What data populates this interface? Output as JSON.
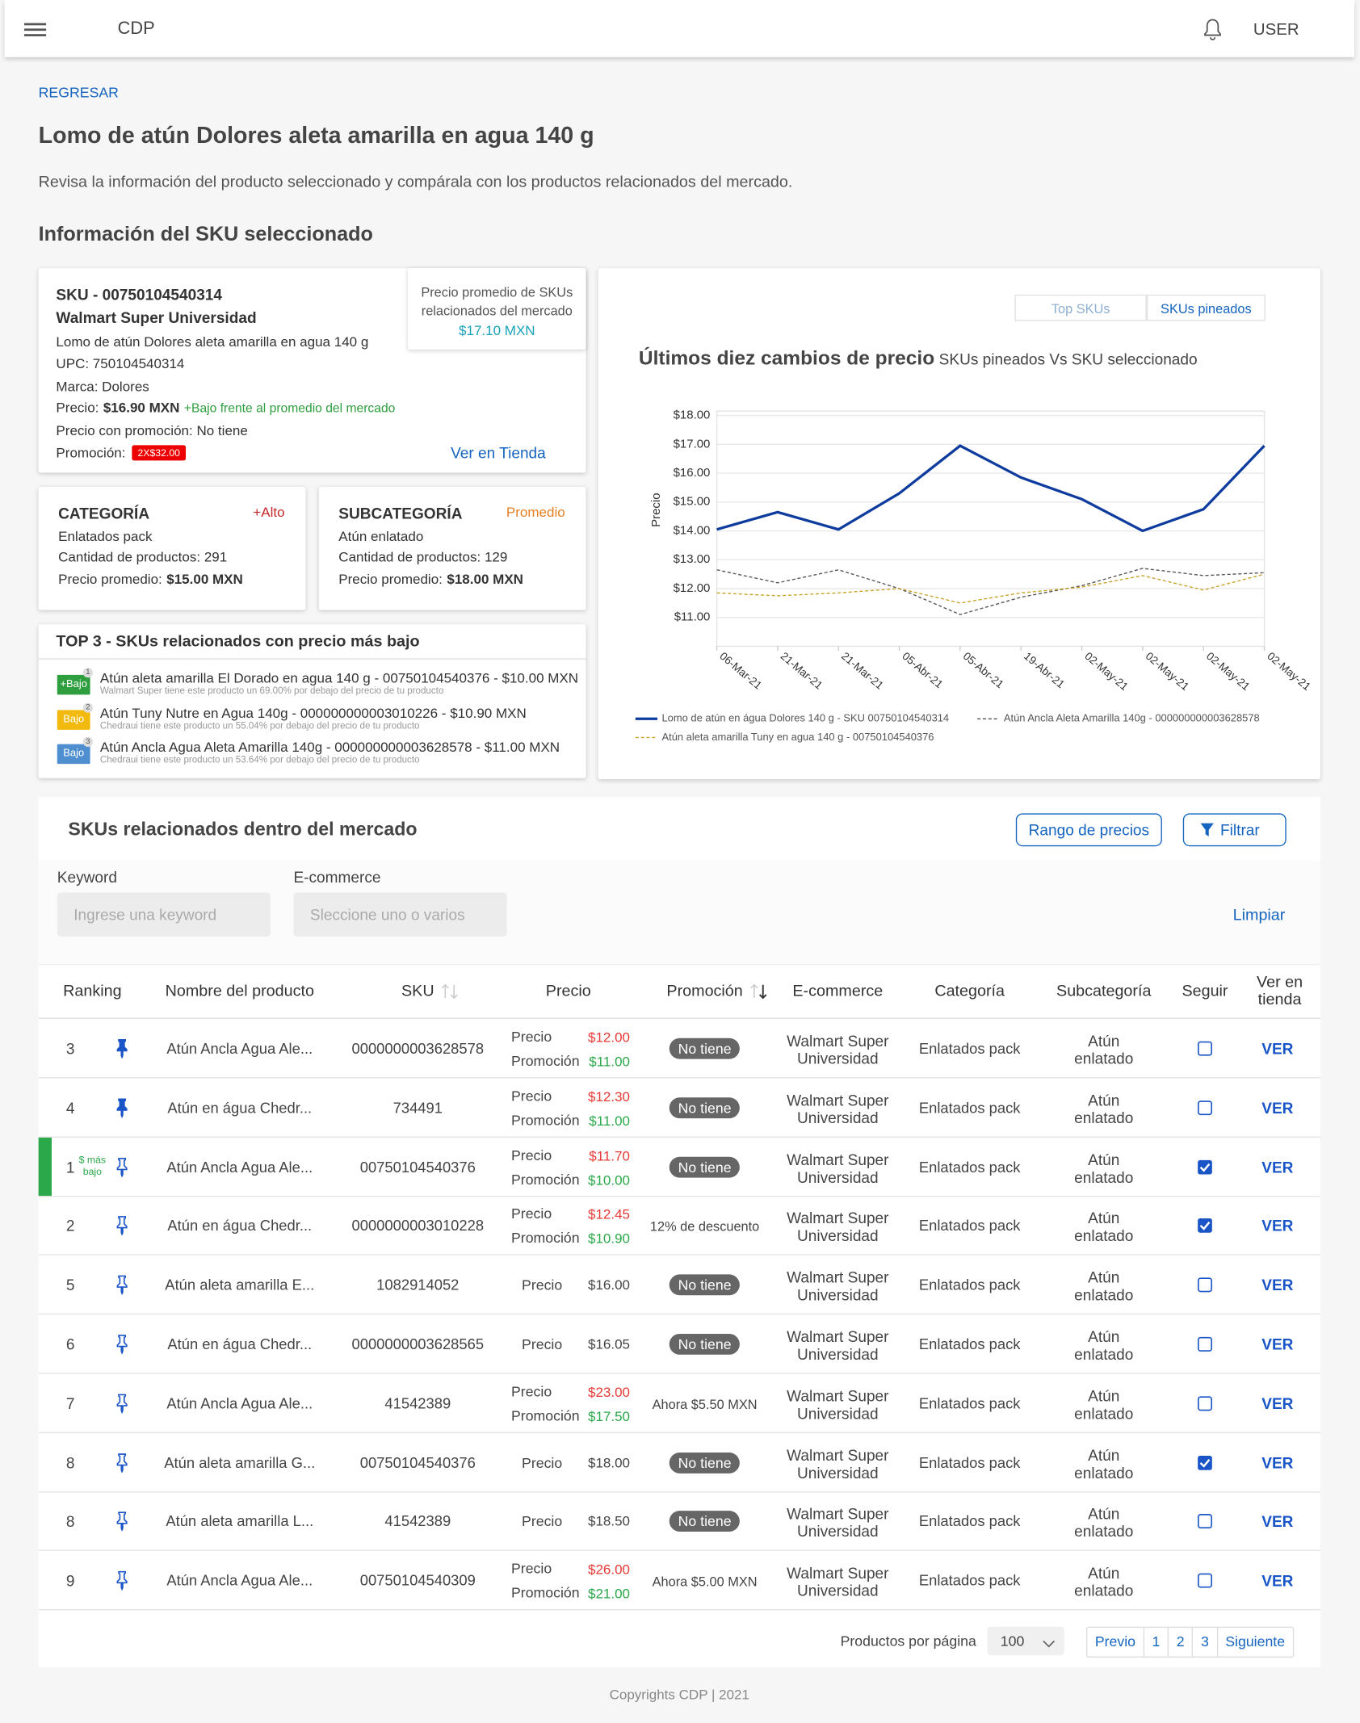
{
  "header": {
    "brand": "CDP",
    "user": "USER"
  },
  "page": {
    "back": "REGRESAR",
    "title": "Lomo de atún Dolores aleta amarilla en agua 140 g",
    "description": "Revisa la información del producto seleccionado y compárala con los productos relacionados del mercado.",
    "section_title": "Información del SKU seleccionado"
  },
  "sku_card": {
    "sku": "SKU - 00750104540314",
    "retailer": "Walmart Super Universidad",
    "name": "Lomo de atún Dolores aleta amarilla en agua 140 g",
    "upc": "UPC: 750104540314",
    "brand": "Marca: Dolores",
    "price_label": "Precio:",
    "price": "$16.90 MXN",
    "price_note": "+Bajo frente al promedio del mercado",
    "promo_price": "Precio con promoción: No tiene",
    "promo_label": "Promoción:",
    "promo_badge": "2X$32.00",
    "store_link": "Ver en Tienda",
    "avg_label": "Precio promedio de SKUs relacionados del mercado",
    "avg_value": "$17.10 MXN"
  },
  "category_card": {
    "title": "CATEGORÍA",
    "tag": "+Alto",
    "tag_color": "#c62828",
    "name": "Enlatados pack",
    "count": "Cantidad de productos: 291",
    "avg_label": "Precio promedio:",
    "avg": "$15.00 MXN"
  },
  "subcategory_card": {
    "title": "SUBCATEGORÍA",
    "tag": "Promedio",
    "tag_color": "#e67e22",
    "name": "Atún enlatado",
    "count": "Cantidad de productos: 129",
    "avg_label": "Precio promedio:",
    "avg": "$18.00 MXN"
  },
  "top3": {
    "title": "TOP 3 - SKUs relacionados con precio más bajo",
    "items": [
      {
        "badge": "+Bajo",
        "color": "#2e9e3e",
        "rank": "1",
        "title": "Atún aleta amarilla El Dorado en agua 140 g - 00750104540376 - $10.00 MXN",
        "note": "Walmart Super tiene este producto un 69.00% por debajo del precio de tu producto"
      },
      {
        "badge": "Bajo",
        "color": "#f2b90f",
        "rank": "2",
        "title": "Atún Tuny Nutre en Agua 140g - 000000000003010226 - $10.90 MXN",
        "note": "Chedraui tiene este producto un 55.04% por debajo del precio de tu producto"
      },
      {
        "badge": "Bajo",
        "color": "#4f8fd0",
        "rank": "3",
        "title": "Atún Ancla Agua Aleta Amarilla 140g - 000000000003628578 - $11.00 MXN",
        "note": "Chedraui tiene este producto un 53.64% por debajo del precio de tu producto"
      }
    ]
  },
  "chart_tabs": {
    "items": [
      "Top SKUs",
      "SKUs pineados"
    ],
    "active": 1
  },
  "chart_data": {
    "type": "line",
    "title": "Últimos diez cambios de precio",
    "subtitle": "SKUs pineados Vs SKU seleccionado",
    "y_label": "Precio",
    "categories": [
      "06-Mar-21",
      "21-Mar-21",
      "21-Mar-21",
      "05-Abr-21",
      "05-Abr-21",
      "19-Abr-21",
      "02-May-21",
      "02-May-21",
      "02-May-21",
      "02-May-21"
    ],
    "series": [
      {
        "name": "Lomo de atún en água Dolores 140 g - SKU 00750104540314",
        "color": "#0d3b9e",
        "dashed": false,
        "values": [
          14.05,
          14.65,
          14.05,
          15.3,
          16.95,
          15.85,
          15.1,
          14.0,
          14.75,
          16.95
        ]
      },
      {
        "name": "Atún Ancla Aleta Amarilla 140g - 000000000003628578",
        "color": "#555555",
        "dashed": true,
        "values": [
          12.65,
          12.2,
          12.65,
          12.0,
          11.1,
          11.7,
          12.1,
          12.7,
          12.45,
          12.55
        ]
      },
      {
        "name": "Atún aleta amarilla Tuny en agua 140 g - 00750104540376",
        "color": "#c9a227",
        "dashed": true,
        "values": [
          11.85,
          11.75,
          11.85,
          12.0,
          11.5,
          11.85,
          12.05,
          12.45,
          11.95,
          12.5
        ]
      }
    ],
    "ylim": [
      10,
      18
    ],
    "yticks": [
      {
        "value": 11,
        "label": "$11.00"
      },
      {
        "value": 12,
        "label": "$12.00"
      },
      {
        "value": 13,
        "label": "$13.00"
      },
      {
        "value": 14,
        "label": "$14.00"
      },
      {
        "value": 15,
        "label": "$15.00"
      },
      {
        "value": 16,
        "label": "$16.00"
      },
      {
        "value": 17,
        "label": "$17.00"
      },
      {
        "value": 18,
        "label": "$18.00"
      }
    ],
    "grid": true
  },
  "table_section": {
    "title": "SKUs relacionados dentro del mercado",
    "range_button": "Rango de precios",
    "filter_button": "Filtrar",
    "keyword_label": "Keyword",
    "keyword_placeholder": "Ingrese una keyword",
    "ecommerce_label": "E-commerce",
    "ecommerce_placeholder": "Sleccione uno o varios",
    "clear": "Limpiar"
  },
  "table": {
    "columns": [
      "Ranking",
      "Nombre del producto",
      "SKU",
      "Precio",
      "Promoción",
      "E-commerce",
      "Categoría",
      "Subcategoría",
      "Seguir",
      "Ver en tienda"
    ],
    "price_label": "Precio",
    "promo_label": "Promoción",
    "action": "VER",
    "rows": [
      {
        "ranking": 3,
        "pinned": true,
        "name": "Atún Ancla Agua Ale...",
        "sku": "0000000003628578",
        "price": "$12.00",
        "promo_price": "$11.00",
        "promotion": "No tiene",
        "promotion_style": "pill",
        "ecommerce": "Walmart Super Universidad",
        "category": "Enlatados pack",
        "subcategory": "Atún enlatado",
        "follow": false
      },
      {
        "ranking": 4,
        "pinned": true,
        "name": "Atún en água Chedr...",
        "sku": "734491",
        "price": "$12.30",
        "promo_price": "$11.00",
        "promotion": "No tiene",
        "promotion_style": "pill",
        "ecommerce": "Walmart Super Universidad",
        "category": "Enlatados pack",
        "subcategory": "Atún enlatado",
        "follow": false
      },
      {
        "ranking": 1,
        "rank_tag": "$ más bajo",
        "highlight": true,
        "pinned": false,
        "name": "Atún Ancla Agua Ale...",
        "sku": "00750104540376",
        "price": "$11.70",
        "promo_price": "$10.00",
        "promotion": "No tiene",
        "promotion_style": "pill",
        "ecommerce": "Walmart Super Universidad",
        "category": "Enlatados pack",
        "subcategory": "Atún enlatado",
        "follow": true
      },
      {
        "ranking": 2,
        "pinned": false,
        "name": "Atún en água Chedr...",
        "sku": "0000000003010228",
        "price": "$12.45",
        "promo_price": "$10.90",
        "promotion": "12% de descuento",
        "promotion_style": "text",
        "ecommerce": "Walmart Super Universidad",
        "category": "Enlatados pack",
        "subcategory": "Atún enlatado",
        "follow": true
      },
      {
        "ranking": 5,
        "pinned": false,
        "name": "Atún aleta amarilla E...",
        "sku": "1082914052",
        "price": "$16.00",
        "promo_price": null,
        "promotion": "No tiene",
        "promotion_style": "pill",
        "ecommerce": "Walmart Super Universidad",
        "category": "Enlatados pack",
        "subcategory": "Atún enlatado",
        "follow": false
      },
      {
        "ranking": 6,
        "pinned": false,
        "name": "Atún en água Chedr...",
        "sku": "0000000003628565",
        "price": "$16.05",
        "promo_price": null,
        "promotion": "No tiene",
        "promotion_style": "pill",
        "ecommerce": "Walmart Super Universidad",
        "category": "Enlatados pack",
        "subcategory": "Atún enlatado",
        "follow": false
      },
      {
        "ranking": 7,
        "pinned": false,
        "name": "Atún Ancla Agua Ale...",
        "sku": "41542389",
        "price": "$23.00",
        "promo_price": "$17.50",
        "promotion": "Ahora $5.50 MXN",
        "promotion_style": "text",
        "ecommerce": "Walmart Super Universidad",
        "category": "Enlatados pack",
        "subcategory": "Atún enlatado",
        "follow": false
      },
      {
        "ranking": 8,
        "pinned": false,
        "name": "Atún aleta amarilla G...",
        "sku": "00750104540376",
        "price": "$18.00",
        "promo_price": null,
        "promotion": "No tiene",
        "promotion_style": "pill",
        "ecommerce": "Walmart Super Universidad",
        "category": "Enlatados pack",
        "subcategory": "Atún enlatado",
        "follow": true
      },
      {
        "ranking": 8,
        "pinned": false,
        "name": "Atún aleta amarilla L...",
        "sku": "41542389",
        "price": "$18.50",
        "promo_price": null,
        "promotion": "No tiene",
        "promotion_style": "pill",
        "ecommerce": "Walmart Super Universidad",
        "category": "Enlatados pack",
        "subcategory": "Atún enlatado",
        "follow": false
      },
      {
        "ranking": 9,
        "pinned": false,
        "name": "Atún Ancla Agua Ale...",
        "sku": "00750104540309",
        "price": "$26.00",
        "promo_price": "$21.00",
        "promotion": "Ahora $5.00 MXN",
        "promotion_style": "text",
        "ecommerce": "Walmart Super Universidad",
        "category": "Enlatados pack",
        "subcategory": "Atún enlatado",
        "follow": false
      }
    ]
  },
  "pagination": {
    "per_page_label": "Productos por página",
    "per_page": "100",
    "prev": "Previo",
    "pages": [
      "1",
      "2",
      "3"
    ],
    "next": "Siguiente"
  },
  "footer": "Copyrights CDP | 2021"
}
